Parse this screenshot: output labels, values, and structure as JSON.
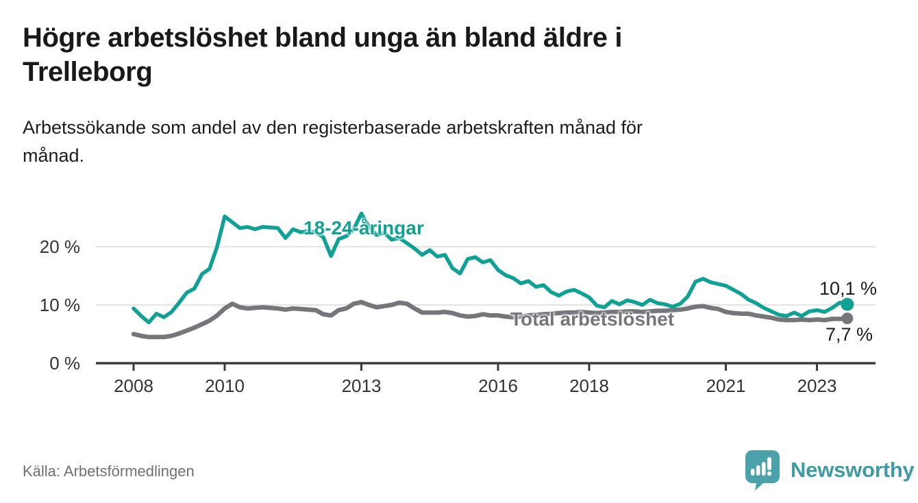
{
  "header": {
    "title_line1": "Högre arbetslöshet bland unga än bland äldre i",
    "title_line2": "Trelleborg",
    "subtitle_line1": "Arbetssökande som andel av den registerbaserade arbetskraften månad för",
    "subtitle_line2": "månad."
  },
  "chart_data": {
    "type": "line",
    "x_unit": "year",
    "x_start_year": 2008,
    "x_step_years": 0.166667,
    "x_tick_years": [
      2008,
      2010,
      2013,
      2016,
      2018,
      2021,
      2023
    ],
    "y_ticks": [
      {
        "value": 0,
        "label": "0 %"
      },
      {
        "value": 10,
        "label": "10 %"
      },
      {
        "value": 20,
        "label": "20 %"
      }
    ],
    "ylim": [
      0,
      26
    ],
    "grid": "horizontal",
    "legend_position": "inline-labels",
    "series": [
      {
        "id": "youth",
        "name": "18-24-åringar",
        "color": "#0fa294",
        "end_label": "10,1 %",
        "end_value": 10.1,
        "values": [
          9.4,
          8.1,
          7.0,
          8.5,
          7.9,
          8.8,
          10.4,
          12.1,
          12.8,
          15.3,
          16.2,
          20.0,
          25.2,
          24.2,
          23.2,
          23.4,
          23.0,
          23.4,
          23.3,
          23.2,
          21.5,
          23.0,
          22.5,
          22.7,
          22.5,
          21.6,
          18.4,
          21.3,
          21.8,
          23.0,
          25.7,
          23.4,
          22.0,
          22.4,
          21.2,
          21.5,
          20.6,
          19.7,
          18.6,
          19.4,
          18.3,
          18.6,
          16.3,
          15.4,
          17.9,
          18.2,
          17.3,
          17.7,
          16.0,
          15.1,
          14.6,
          13.7,
          14.1,
          13.1,
          13.4,
          12.2,
          11.6,
          12.3,
          12.6,
          12.0,
          11.3,
          9.9,
          9.6,
          10.7,
          10.1,
          10.8,
          10.5,
          10.0,
          10.9,
          10.3,
          10.1,
          9.7,
          10.2,
          11.5,
          14.0,
          14.5,
          13.9,
          13.6,
          13.3,
          12.6,
          11.9,
          10.9,
          10.3,
          9.5,
          8.9,
          8.3,
          8.1,
          8.7,
          8.1,
          8.9,
          9.1,
          8.8,
          9.5,
          10.4,
          10.1
        ]
      },
      {
        "id": "total",
        "name": "Total arbetslöshet",
        "color": "#75767b",
        "end_label": "7,7 %",
        "end_value": 7.7,
        "values": [
          5.0,
          4.7,
          4.5,
          4.5,
          4.5,
          4.7,
          5.1,
          5.6,
          6.1,
          6.7,
          7.3,
          8.2,
          9.4,
          10.2,
          9.6,
          9.4,
          9.5,
          9.6,
          9.5,
          9.4,
          9.2,
          9.4,
          9.3,
          9.2,
          9.1,
          8.4,
          8.2,
          9.1,
          9.4,
          10.2,
          10.5,
          10.0,
          9.6,
          9.8,
          10.0,
          10.4,
          10.2,
          9.4,
          8.7,
          8.7,
          8.7,
          8.8,
          8.6,
          8.2,
          8.0,
          8.1,
          8.4,
          8.2,
          8.2,
          8.0,
          7.9,
          8.0,
          8.2,
          8.3,
          8.4,
          8.5,
          8.6,
          8.7,
          8.7,
          8.8,
          8.7,
          8.6,
          8.7,
          8.8,
          8.8,
          8.9,
          8.9,
          8.8,
          8.9,
          9.0,
          9.0,
          9.1,
          9.2,
          9.4,
          9.7,
          9.8,
          9.5,
          9.3,
          8.8,
          8.6,
          8.5,
          8.5,
          8.2,
          8.0,
          7.8,
          7.5,
          7.4,
          7.4,
          7.5,
          7.4,
          7.5,
          7.4,
          7.6,
          7.6,
          7.7
        ]
      }
    ]
  },
  "colors": {
    "background": "#ffffff",
    "gridline": "#e4e4e4",
    "axis_line": "#3c3c3c",
    "axis_text": "#333333",
    "title_text": "#191919",
    "source_text": "#6f6f74",
    "brand_teal": "#4ba2ab",
    "brand_text": "#3e9aa4"
  },
  "footer": {
    "source": "Källa: Arbetsförmedlingen",
    "brand": "Newsworthy"
  }
}
